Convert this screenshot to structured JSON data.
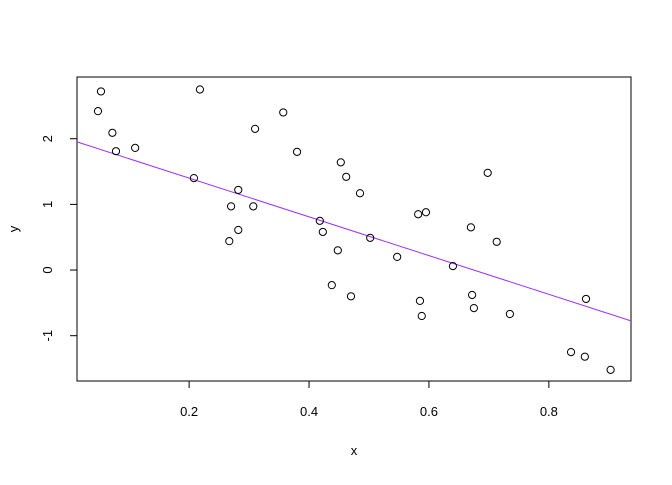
{
  "chart_data": {
    "type": "scatter",
    "x_label": "x",
    "y_label": "y",
    "x": [
      0.053,
      0.048,
      0.072,
      0.078,
      0.11,
      0.218,
      0.208,
      0.31,
      0.357,
      0.38,
      0.282,
      0.27,
      0.307,
      0.282,
      0.267,
      0.453,
      0.462,
      0.485,
      0.418,
      0.423,
      0.502,
      0.448,
      0.547,
      0.438,
      0.47,
      0.582,
      0.595,
      0.585,
      0.588,
      0.64,
      0.698,
      0.67,
      0.713,
      0.672,
      0.675,
      0.735,
      0.862,
      0.837,
      0.86,
      0.903
    ],
    "values": [
      2.72,
      2.42,
      2.09,
      1.81,
      1.86,
      2.75,
      1.4,
      2.15,
      2.4,
      1.8,
      1.22,
      0.97,
      0.97,
      0.61,
      0.44,
      1.64,
      1.42,
      1.17,
      0.75,
      0.58,
      0.49,
      0.3,
      0.2,
      -0.23,
      -0.4,
      0.85,
      0.88,
      -0.47,
      -0.7,
      0.06,
      1.48,
      0.65,
      0.43,
      -0.38,
      -0.58,
      -0.67,
      -0.44,
      -1.25,
      -1.32,
      -1.52
    ],
    "color": "#000000",
    "fit_line": {
      "intercept": 1.99,
      "slope": -2.95,
      "color": "#9b30ff"
    },
    "xlim": [
      0.013,
      0.937
    ],
    "ylim": [
      -1.69,
      2.94
    ],
    "xticks": [
      0.2,
      0.4,
      0.6,
      0.8
    ],
    "yticks": [
      -1,
      0,
      1,
      2
    ]
  }
}
